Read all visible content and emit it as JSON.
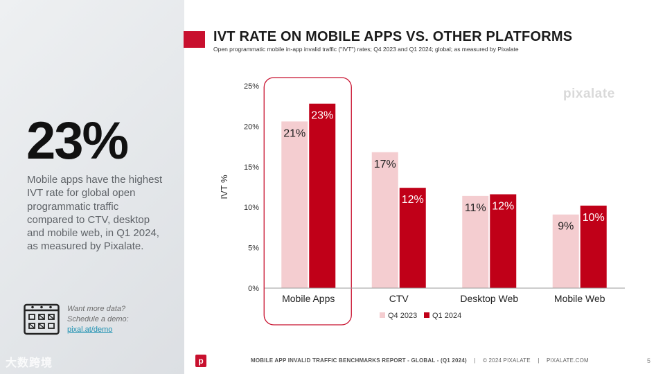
{
  "left": {
    "stat": "23%",
    "description": "Mobile apps have the highest IVT rate for global open programmatic traffic compared to CTV, desktop and mobile web, in Q1 2024, as measured by Pixalate.",
    "demo_line1": "Want more data?",
    "demo_line2": "Schedule a demo:",
    "demo_link": "pixal.at/demo",
    "watermark": "大数跨境"
  },
  "header": {
    "title": "IVT RATE ON MOBILE APPS VS. OTHER PLATFORMS",
    "subtitle": "Open programmatic mobile in-app invalid traffic (\"IVT\") rates; Q4 2023 and Q1 2024; global; as measured by Pixalate",
    "brand_watermark": "pixalate"
  },
  "chart_data": {
    "type": "bar",
    "title": "IVT RATE ON MOBILE APPS VS. OTHER PLATFORMS",
    "ylabel": "IVT %",
    "xlabel": "",
    "ylim": [
      0,
      25
    ],
    "yticks": [
      0,
      5,
      10,
      15,
      20,
      25
    ],
    "ytick_labels": [
      "0%",
      "5%",
      "10%",
      "15%",
      "20%",
      "25%"
    ],
    "categories": [
      "Mobile Apps",
      "CTV",
      "Desktop Web",
      "Mobile Web"
    ],
    "series": [
      {
        "name": "Q4 2023",
        "color": "#f4cdd0",
        "values": [
          20.6,
          16.8,
          11.4,
          9.1
        ],
        "labels": [
          "21%",
          "17%",
          "11%",
          "9%"
        ]
      },
      {
        "name": "Q1 2024",
        "color": "#c00018",
        "values": [
          22.8,
          12.4,
          11.6,
          10.2
        ],
        "labels": [
          "23%",
          "12%",
          "12%",
          "10%"
        ]
      }
    ],
    "highlight_category": "Mobile Apps",
    "legend_position": "bottom-center",
    "grid": false
  },
  "footer": {
    "report": "MOBILE APP INVALID TRAFFIC BENCHMARKS REPORT - GLOBAL -  (Q1 2024)",
    "copyright": "© 2024 PIXALATE",
    "site": "PIXALATE.COM",
    "page": "5",
    "logo_letter": "p"
  },
  "colors": {
    "brand": "#c8102e",
    "q4": "#f4cdd0",
    "q1": "#c00018"
  }
}
